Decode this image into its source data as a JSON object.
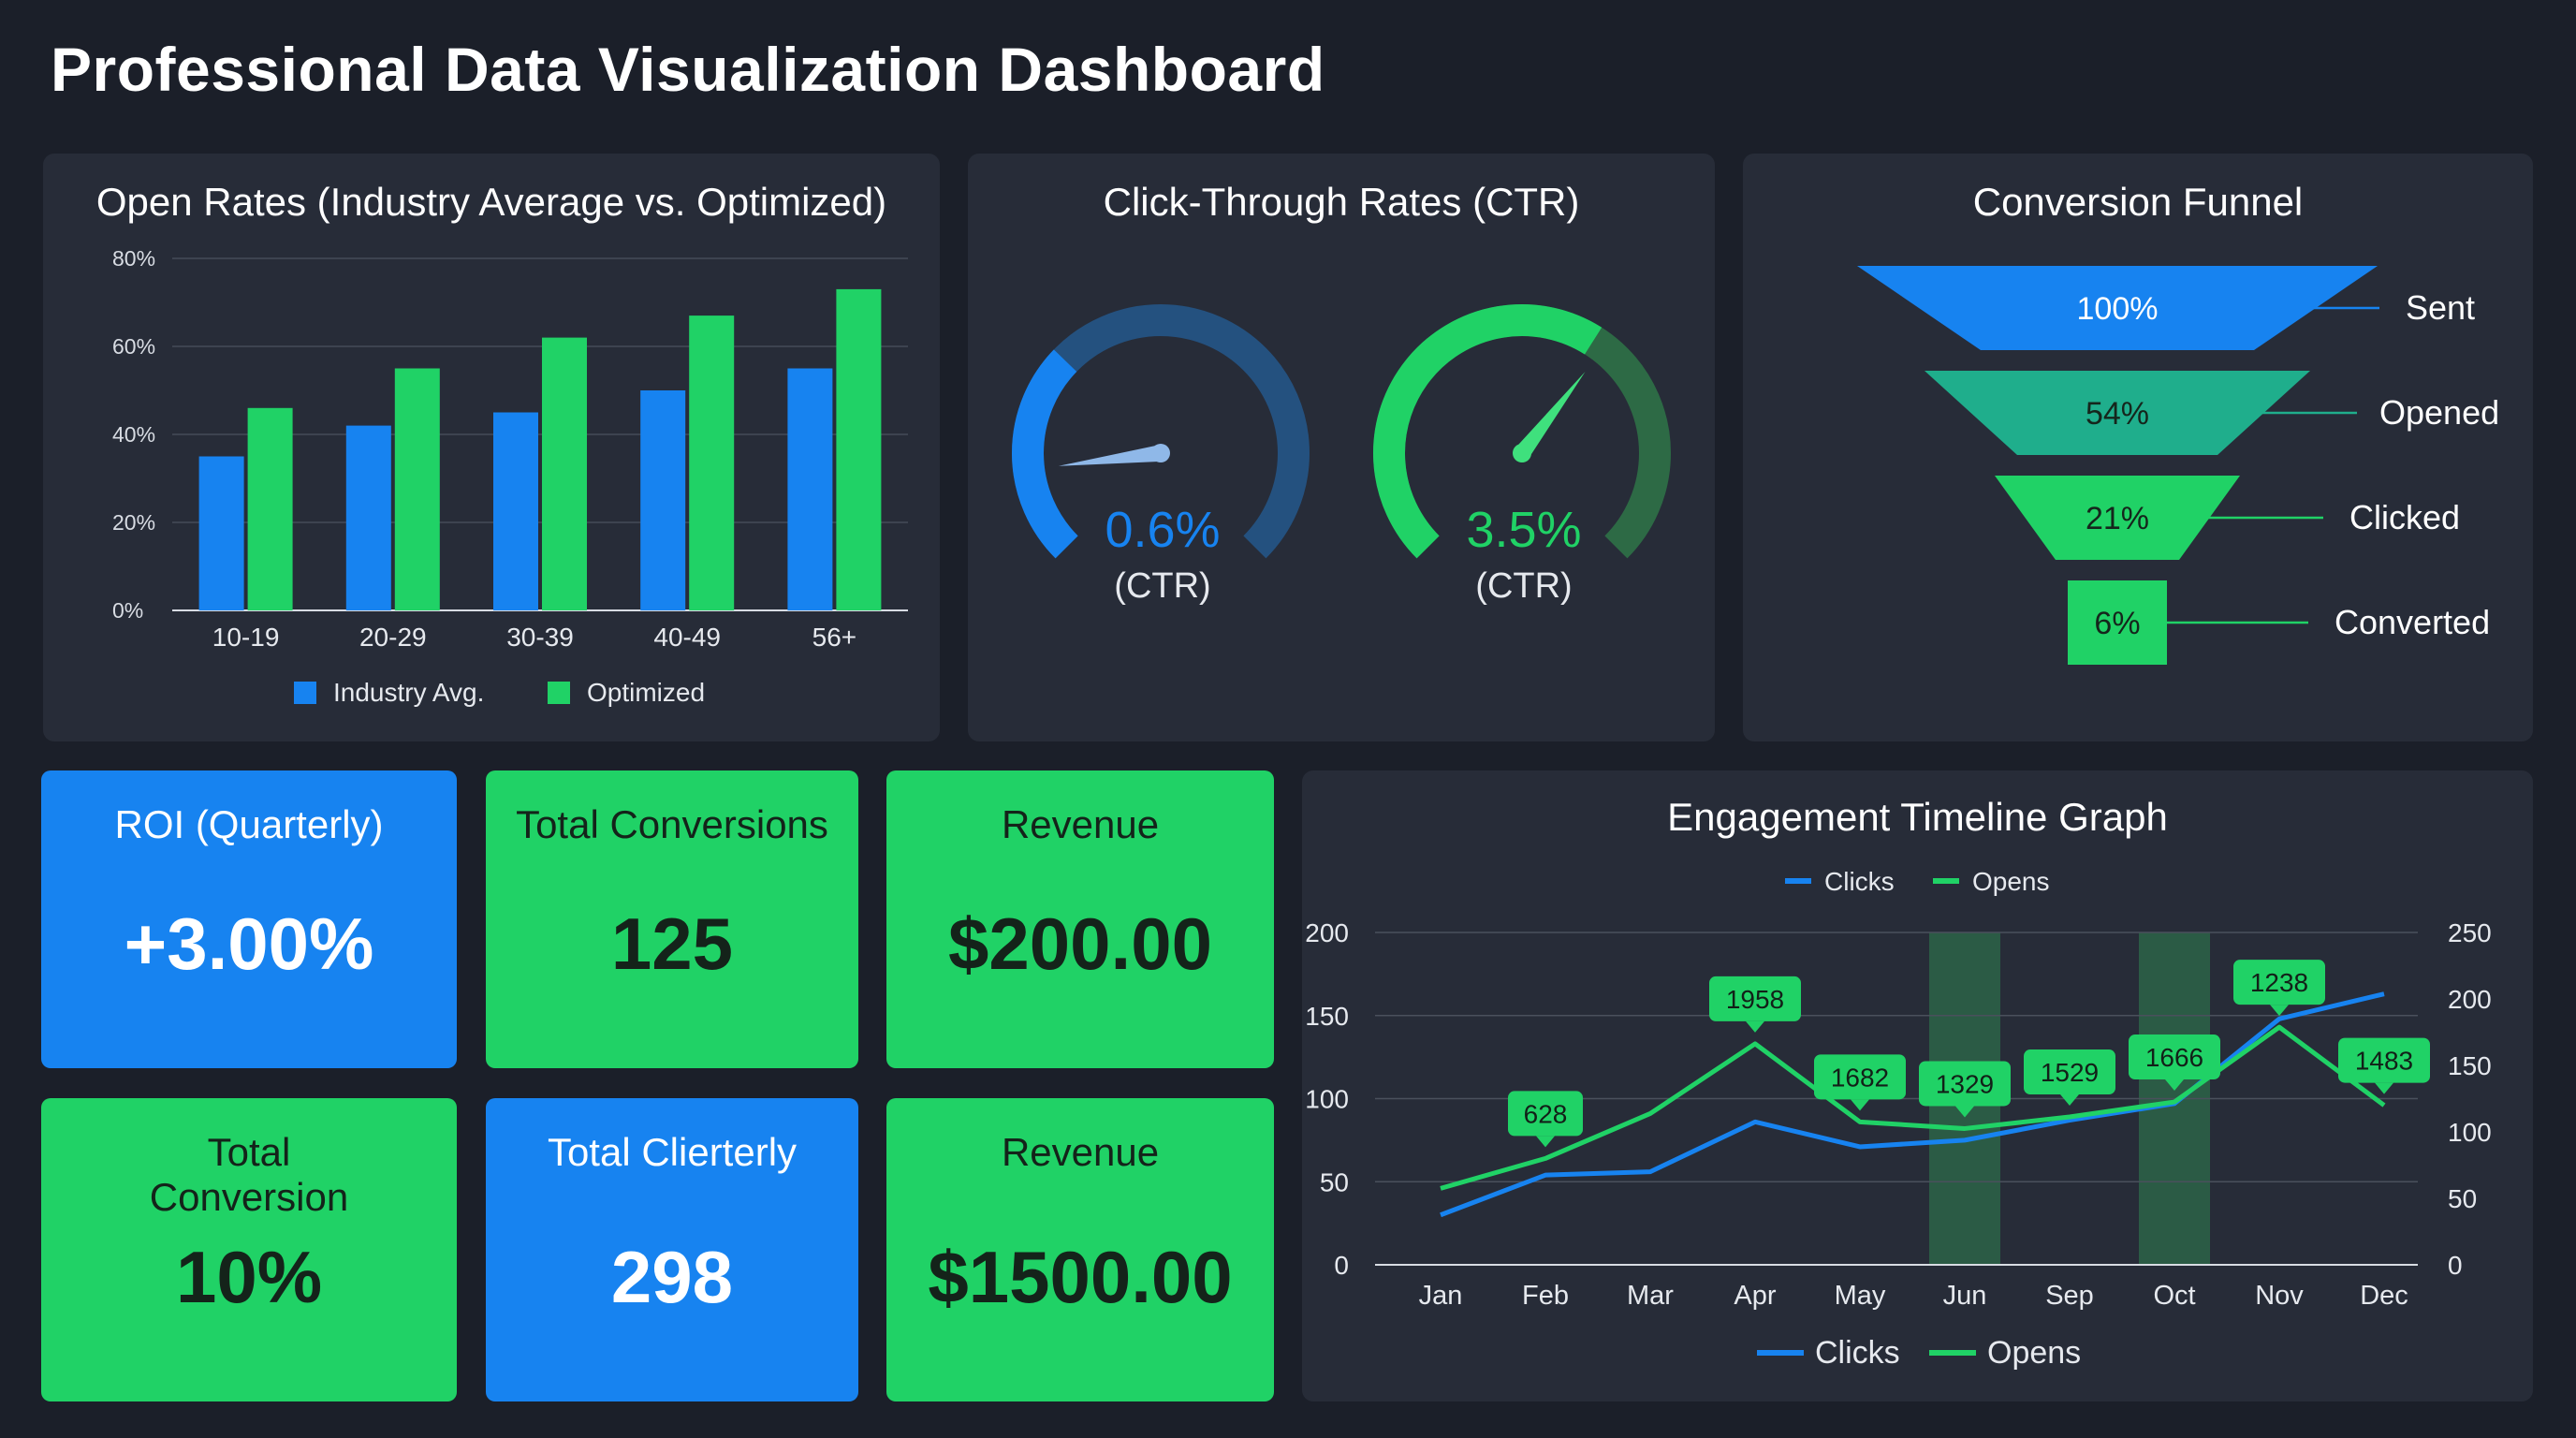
{
  "page": {
    "title": "Professional Data Visualization Dashboard"
  },
  "colors": {
    "blue": "#1783f0",
    "green": "#20d266",
    "teal": "#1fae8c",
    "panel": "#272c38",
    "background": "#1b1f29"
  },
  "open_rates": {
    "title": "Open Rates (Industry Average vs. Optimized)",
    "chart_data": {
      "type": "bar",
      "categories": [
        "10-19",
        "20-29",
        "30-39",
        "40-49",
        "56+"
      ],
      "series": [
        {
          "name": "Industry Avg.",
          "values": [
            35,
            42,
            45,
            50,
            55
          ]
        },
        {
          "name": "Optimized",
          "values": [
            46,
            55,
            62,
            67,
            73
          ]
        }
      ],
      "ylim": [
        0,
        80
      ],
      "yticks": [
        "0%",
        "20%",
        "40%",
        "60%",
        "80%"
      ],
      "ytick_values": [
        0,
        20,
        40,
        60,
        80
      ],
      "grid": true,
      "legend": "bottom"
    }
  },
  "ctr": {
    "title": "Click-Through Rates (CTR)",
    "gauges": [
      {
        "value_label": "0.6%",
        "sub_label": "(CTR)",
        "fill_fraction": 0.33,
        "needle_fraction": 0.14,
        "color": "#1783f0",
        "track_color": "#24517f"
      },
      {
        "value_label": "3.5%",
        "sub_label": "(CTR)",
        "fill_fraction": 0.62,
        "needle_fraction": 0.64,
        "color": "#20d266",
        "track_color": "#2d6a45"
      }
    ]
  },
  "funnel": {
    "title": "Conversion Funnel",
    "chart_data": {
      "type": "funnel",
      "stages": [
        {
          "label": "Sent",
          "value": 100,
          "value_label": "100%",
          "color": "#1783f0"
        },
        {
          "label": "Opened",
          "value": 54,
          "value_label": "54%",
          "color": "#1fae8c"
        },
        {
          "label": "Clicked",
          "value": 21,
          "value_label": "21%",
          "color": "#20d266"
        },
        {
          "label": "Converted",
          "value": 6,
          "value_label": "6%",
          "color": "#20d266"
        }
      ]
    }
  },
  "kpis": [
    {
      "label": "ROI (Quarterly)",
      "value": "+3.00%",
      "style": "blue"
    },
    {
      "label": "Total Conversions",
      "value": "125",
      "style": "green"
    },
    {
      "label": "Revenue",
      "value": "$200.00",
      "style": "green"
    },
    {
      "label": "Total Conversion",
      "value": "10%",
      "style": "green"
    },
    {
      "label": "Total Clierterly",
      "value": "298",
      "style": "blue"
    },
    {
      "label": "Revenue",
      "value": "$1500.00",
      "style": "green"
    }
  ],
  "engagement": {
    "title": "Engagement Timeline Graph",
    "chart_data": {
      "type": "line",
      "x": [
        "Jan",
        "Feb",
        "Mar",
        "Apr",
        "May",
        "Jun",
        "Sep",
        "Oct",
        "Nov",
        "Dec"
      ],
      "series": [
        {
          "name": "Clicks",
          "axis": "left",
          "color": "#1783f0",
          "values": [
            30,
            54,
            56,
            86,
            71,
            75,
            87,
            97,
            148,
            163
          ]
        },
        {
          "name": "Opens",
          "axis": "left",
          "color": "#20d266",
          "values": [
            46,
            64,
            91,
            133,
            86,
            82,
            89,
            98,
            143,
            96
          ]
        }
      ],
      "annotations": [
        {
          "x": "Feb",
          "label": "628"
        },
        {
          "x": "Apr",
          "label": "1958"
        },
        {
          "x": "May",
          "label": "1682"
        },
        {
          "x": "Jun",
          "label": "1329"
        },
        {
          "x": "Sep",
          "label": "1529"
        },
        {
          "x": "Oct",
          "label": "1666"
        },
        {
          "x": "Nov",
          "label": "1238"
        },
        {
          "x": "Dec",
          "label": "1483"
        }
      ],
      "highlight_bands": [
        "Jun",
        "Oct"
      ],
      "ylim_left": [
        0,
        200
      ],
      "yticks_left": [
        0,
        50,
        100,
        150,
        200
      ],
      "ylim_right": [
        0,
        250
      ],
      "yticks_right": [
        0,
        50,
        100,
        150,
        200,
        250
      ],
      "grid": true,
      "legend": "top and bottom",
      "legend_top": [
        "Clicks",
        "Opens"
      ],
      "legend_bottom": [
        "Clicks",
        "Opens"
      ]
    }
  }
}
